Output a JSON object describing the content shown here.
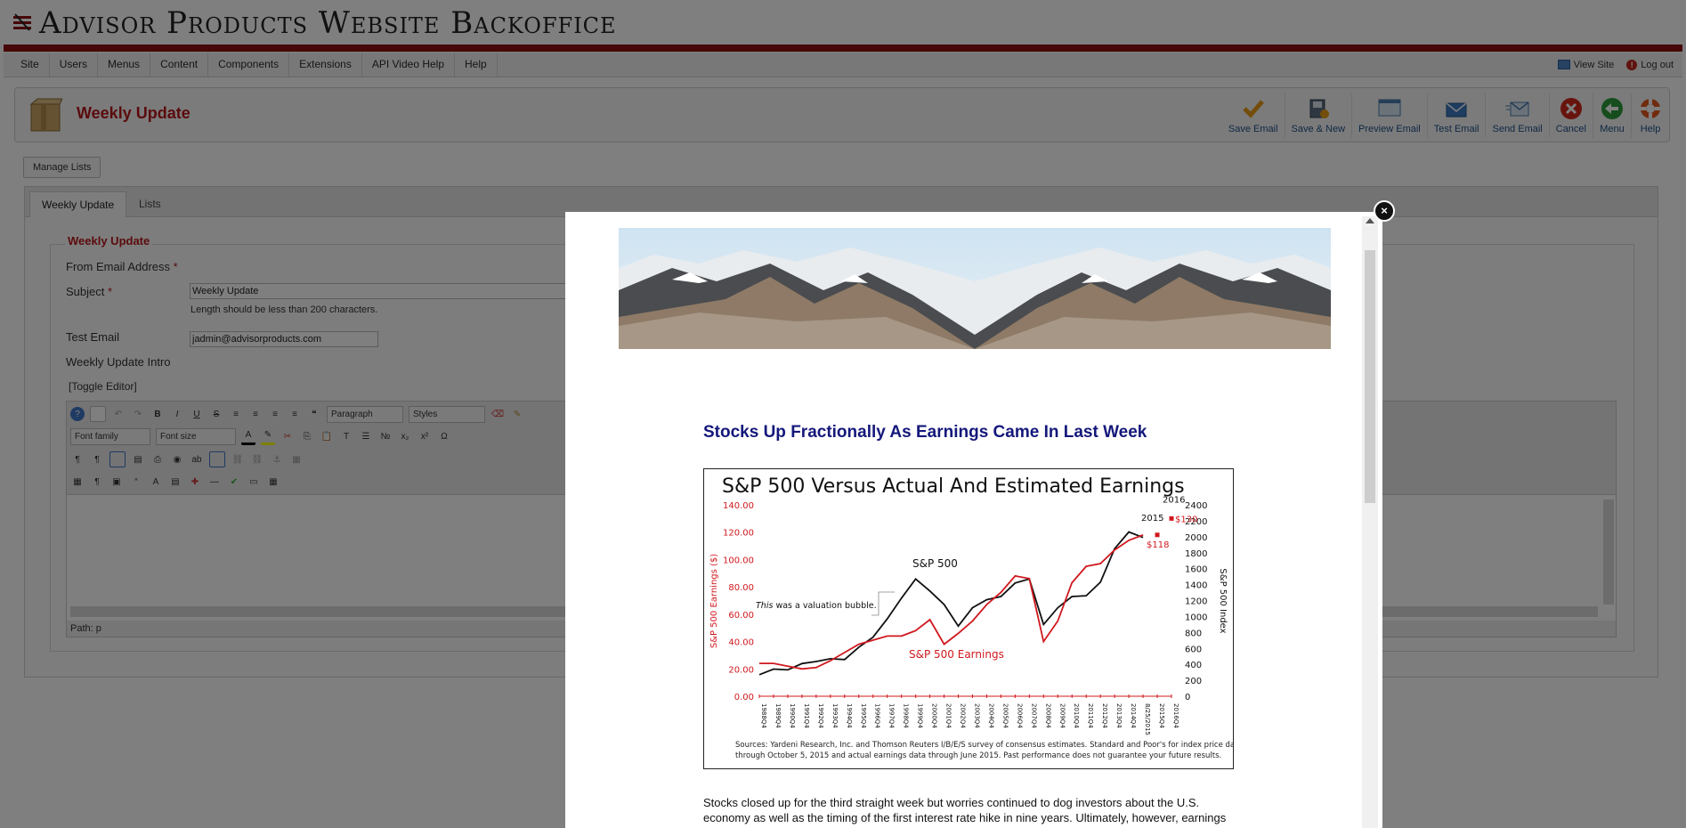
{
  "header": {
    "title": "Advisor Products Website Backoffice"
  },
  "menu": {
    "items": [
      "Site",
      "Users",
      "Menus",
      "Content",
      "Components",
      "Extensions",
      "API Video Help",
      "Help"
    ],
    "view_site": "View Site",
    "logout": "Log out"
  },
  "toolbar": {
    "page_title": "Weekly Update",
    "buttons": [
      "Save Email",
      "Save & New",
      "Preview Email",
      "Test Email",
      "Send Email",
      "Cancel",
      "Menu",
      "Help"
    ]
  },
  "manage_lists_label": "Manage Lists",
  "tabs": [
    "Weekly Update",
    "Lists"
  ],
  "form": {
    "legend": "Weekly Update",
    "from_email_label": "From Email Address",
    "required_mark": "*",
    "subject_label": "Subject",
    "subject_value": "Weekly Update",
    "subject_hint": "Length should be less than 200 characters.",
    "test_email_label": "Test Email",
    "test_email_value": "jadmin@advisorproducts.com",
    "intro_label": "Weekly Update Intro",
    "toggle_editor": "[Toggle Editor]"
  },
  "editor": {
    "format_select": "Paragraph",
    "styles_select": "Styles",
    "font_family_select": "Font family",
    "font_size_select": "Font size",
    "path_label": "Path:",
    "path_value": "p"
  },
  "modal": {
    "close_symbol": "×",
    "headline": "Stocks Up Fractionally As Earnings Came In Last Week",
    "body": "Stocks closed up for the third straight week but worries continued to dog investors about the U.S. economy as well as the timing of the first interest rate hike in nine years. Ultimately, however, earnings are what drive stocks and they came in about as expected."
  },
  "chart_data": {
    "type": "line",
    "title": "S&P 500 Versus Actual And Estimated Earnings",
    "ylabel_left": "S&P 500 Earnings ($)",
    "ylabel_right": "S&P 500 Index",
    "yticks_left": [
      "140.00",
      "120.00",
      "100.00",
      "80.00",
      "60.00",
      "40.00",
      "20.00",
      "0.00"
    ],
    "yticks_right": [
      "2400",
      "2200",
      "2000",
      "1800",
      "1600",
      "1400",
      "1200",
      "1000",
      "800",
      "600",
      "400",
      "200",
      "0"
    ],
    "ylim_left": [
      0,
      140
    ],
    "ylim_right": [
      0,
      2400
    ],
    "x_labels": [
      "1988Q4",
      "1989Q4",
      "1990Q4",
      "1991Q4",
      "1992Q4",
      "1993Q4",
      "1994Q4",
      "1995Q4",
      "1996Q4",
      "1997Q4",
      "1998Q4",
      "1999Q4",
      "2000Q4",
      "2001Q4",
      "2002Q4",
      "2003Q4",
      "2004Q4",
      "2005Q4",
      "2006Q4",
      "2007Q4",
      "2008Q4",
      "2009Q4",
      "2010Q4",
      "2011Q4",
      "2012Q4",
      "2013Q4",
      "2014Q4",
      "8/25/2015",
      "2015Q4",
      "2016Q4"
    ],
    "series": [
      {
        "name": "S&P 500",
        "color": "#111111",
        "axis": "right",
        "values": [
          270,
          340,
          330,
          410,
          435,
          470,
          460,
          615,
          740,
          970,
          1230,
          1470,
          1320,
          1150,
          880,
          1110,
          1210,
          1250,
          1420,
          1470,
          900,
          1110,
          1250,
          1260,
          1430,
          1850,
          2060,
          1990,
          null,
          null
        ]
      },
      {
        "name": "S&P 500 Earnings",
        "color": "#d0181e",
        "axis": "left",
        "values": [
          24,
          24,
          22,
          20,
          21,
          26,
          32,
          38,
          41,
          44,
          44,
          48,
          56,
          38,
          46,
          55,
          67,
          76,
          88,
          86,
          40,
          55,
          83,
          95,
          97,
          107,
          114,
          118,
          null,
          null
        ]
      }
    ],
    "estimates": [
      {
        "label": "2015",
        "value_label": "$118",
        "value": 118,
        "color": "#d0181e"
      },
      {
        "label": "2016",
        "value_label": "$130",
        "value": 130,
        "color": "#d0181e"
      }
    ],
    "annotations": [
      {
        "text_italic": "This",
        "text": " was a valuation bubble."
      },
      {
        "text": "S&P 500"
      },
      {
        "text": "S&P 500 Earnings"
      }
    ],
    "source": "Sources: Yardeni Research, Inc. and Thomson Reuters I/B/E/S survey of consensus estimates. Standard and Poor's for index price data through October 5, 2015 and actual earnings data through June 2015. Past performance does not guarantee your future results.",
    "grid": false,
    "legend": "none"
  }
}
